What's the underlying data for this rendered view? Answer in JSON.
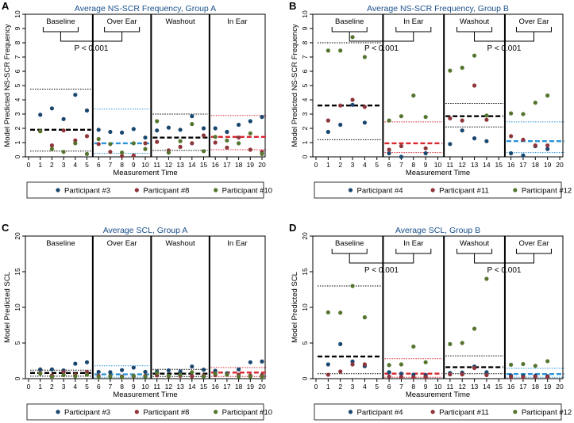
{
  "chart_data": [
    {
      "type": "scatter",
      "panel_letter": "A",
      "title": "Average NS-SCR Frequency, Group A",
      "xlabel": "Measurement Time",
      "ylabel": "Model Predicted NS-SCR Frequency",
      "xlim": [
        0,
        20
      ],
      "ylim": [
        0,
        10
      ],
      "yticks": [
        0,
        1,
        2,
        3,
        4,
        5,
        6,
        7,
        8,
        9,
        10
      ],
      "xticks": [
        0,
        1,
        2,
        3,
        4,
        5,
        6,
        7,
        8,
        9,
        10,
        11,
        12,
        13,
        14,
        15,
        16,
        17,
        18,
        19,
        20
      ],
      "phases": [
        {
          "label": "Baseline",
          "x_start": 0,
          "x_end": 5.5,
          "mean": 1.9,
          "upper": 4.75,
          "lower": 0.4,
          "mean_color": "#000000",
          "band_color": "#000000"
        },
        {
          "label": "Over Ear",
          "x_start": 5.5,
          "x_end": 10.5,
          "mean": 0.95,
          "upper": 3.35,
          "lower": 0.25,
          "mean_color": "#2a92d8",
          "band_color": "#2a92d8"
        },
        {
          "label": "Washout",
          "x_start": 10.5,
          "x_end": 15.5,
          "mean": 1.35,
          "upper": 3.0,
          "lower": 0.45,
          "mean_color": "#000000",
          "band_color": "#000000"
        },
        {
          "label": "In Ear",
          "x_start": 15.5,
          "x_end": 20.5,
          "mean": 1.4,
          "upper": 2.9,
          "lower": 0.5,
          "mean_color": "#d8262f",
          "band_color": "#d8262f"
        }
      ],
      "phase_boundaries": [
        5.5,
        10.5,
        15.5
      ],
      "comparison": {
        "from_phase": 0,
        "to_phase": 1,
        "text": "P < 0.001"
      },
      "series": [
        {
          "name": "Participant #3",
          "color": "#1a476f",
          "x": [
            1,
            2,
            3,
            4,
            5,
            6,
            7,
            8,
            9,
            10,
            11,
            12,
            13,
            14,
            15,
            16,
            17,
            18,
            19,
            20
          ],
          "y": [
            2.95,
            3.4,
            2.65,
            4.35,
            3.25,
            1.9,
            1.75,
            1.7,
            1.95,
            1.35,
            1.85,
            2.05,
            1.9,
            2.85,
            2.0,
            2.0,
            1.75,
            2.25,
            2.5,
            2.8
          ]
        },
        {
          "name": "Participant #8",
          "color": "#90353b",
          "x": [
            1,
            2,
            3,
            4,
            5,
            6,
            7,
            8,
            9,
            10,
            11,
            12,
            13,
            14,
            15,
            16,
            17,
            18,
            19,
            20
          ],
          "y": [
            1.8,
            0.8,
            1.85,
            1.15,
            1.45,
            0.9,
            0.35,
            0.05,
            0.1,
            0.95,
            1.05,
            0.45,
            0.7,
            0.95,
            1.5,
            1.0,
            0.65,
            1.35,
            0.5,
            0.35
          ]
        },
        {
          "name": "Participant #10",
          "color": "#55752f",
          "x": [
            1,
            2,
            3,
            4,
            5,
            6,
            7,
            8,
            9,
            10,
            11,
            12,
            13,
            14,
            15,
            16,
            17,
            18,
            19,
            20
          ],
          "y": [
            1.8,
            0.55,
            0.35,
            0.95,
            0.2,
            1.25,
            0.9,
            0.3,
            0.95,
            0.55,
            2.5,
            0.3,
            1.1,
            2.3,
            0.4,
            1.4,
            1.15,
            0.95,
            1.65,
            0.2
          ]
        }
      ]
    },
    {
      "type": "scatter",
      "panel_letter": "B",
      "title": "Average NS-SCR Frequency, Group B",
      "xlabel": "Measurement Time",
      "ylabel": "Model Predicted NS-SCR Frequency",
      "xlim": [
        0,
        20
      ],
      "ylim": [
        0,
        10
      ],
      "yticks": [
        0,
        1,
        2,
        3,
        4,
        5,
        6,
        7,
        8,
        9,
        10
      ],
      "xticks": [
        0,
        1,
        2,
        3,
        4,
        5,
        6,
        7,
        8,
        9,
        10,
        11,
        12,
        13,
        14,
        15,
        16,
        17,
        18,
        19,
        20
      ],
      "phases": [
        {
          "label": "Baseline",
          "x_start": 0,
          "x_end": 5.5,
          "mean": 3.6,
          "upper": 8.0,
          "lower": 1.2,
          "mean_color": "#000000",
          "band_color": "#000000"
        },
        {
          "label": "In Ear",
          "x_start": 5.5,
          "x_end": 10.5,
          "mean": 0.95,
          "upper": 2.45,
          "lower": 0.3,
          "mean_color": "#d8262f",
          "band_color": "#d8262f"
        },
        {
          "label": "Washout",
          "x_start": 10.5,
          "x_end": 15.5,
          "mean": 2.85,
          "upper": 3.75,
          "lower": 2.1,
          "mean_color": "#000000",
          "band_color": "#000000"
        },
        {
          "label": "Over Ear",
          "x_start": 15.5,
          "x_end": 20.5,
          "mean": 1.1,
          "upper": 2.45,
          "lower": 0.3,
          "mean_color": "#2a92d8",
          "band_color": "#2a92d8"
        }
      ],
      "phase_boundaries": [
        5.5,
        10.5,
        15.5
      ],
      "comparisons": [
        {
          "from_phase": 0,
          "to_phase": 1,
          "text": "P < 0.001"
        },
        {
          "from_phase": 2,
          "to_phase": 3,
          "text": "P < 0.001"
        }
      ],
      "series": [
        {
          "name": "Participant #4",
          "color": "#1a476f",
          "x": [
            1,
            2,
            3,
            4,
            6,
            7,
            9,
            11,
            12,
            13,
            14,
            16,
            17,
            18,
            19
          ],
          "y": [
            1.75,
            2.25,
            3.65,
            2.4,
            0.25,
            0.0,
            0.25,
            0.9,
            1.85,
            1.3,
            1.1,
            0.25,
            0.1,
            0.75,
            0.55
          ]
        },
        {
          "name": "Participant #11",
          "color": "#90353b",
          "x": [
            1,
            2,
            3,
            4,
            6,
            7,
            9,
            11,
            12,
            13,
            14,
            16,
            17,
            18,
            19
          ],
          "y": [
            2.55,
            3.6,
            4.0,
            3.5,
            0.5,
            0.75,
            0.6,
            2.7,
            2.55,
            5.0,
            2.6,
            1.45,
            1.2,
            0.8,
            0.8
          ]
        },
        {
          "name": "Participant #12",
          "color": "#55752f",
          "x": [
            1,
            2,
            3,
            4,
            6,
            7,
            8,
            9,
            11,
            12,
            13,
            14,
            16,
            17,
            18,
            19
          ],
          "y": [
            7.45,
            7.45,
            8.4,
            7.0,
            2.55,
            2.85,
            4.3,
            2.8,
            6.05,
            6.25,
            7.1,
            2.9,
            3.05,
            3.0,
            3.8,
            4.3
          ]
        }
      ]
    },
    {
      "type": "scatter",
      "panel_letter": "C",
      "title": "Average SCL, Group A",
      "xlabel": "Measurement Time",
      "ylabel": "Model Predicted SCL",
      "xlim": [
        0,
        20
      ],
      "ylim": [
        0,
        20
      ],
      "yticks": [
        0,
        5,
        10,
        15,
        20
      ],
      "xticks": [
        0,
        1,
        2,
        3,
        4,
        5,
        6,
        7,
        8,
        9,
        10,
        11,
        12,
        13,
        14,
        15,
        16,
        17,
        18,
        19,
        20
      ],
      "phases": [
        {
          "label": "Baseline",
          "x_start": 0,
          "x_end": 5.5,
          "mean": 0.8,
          "upper": 1.2,
          "lower": 0.35,
          "mean_color": "#000000",
          "band_color": "#000000"
        },
        {
          "label": "Over Ear",
          "x_start": 5.5,
          "x_end": 10.5,
          "mean": 0.6,
          "upper": 1.8,
          "lower": 0.2,
          "mean_color": "#2a92d8",
          "band_color": "#2a92d8"
        },
        {
          "label": "Washout",
          "x_start": 10.5,
          "x_end": 15.5,
          "mean": 0.7,
          "upper": 1.3,
          "lower": 0.3,
          "mean_color": "#000000",
          "band_color": "#000000"
        },
        {
          "label": "In Ear",
          "x_start": 15.5,
          "x_end": 20.5,
          "mean": 0.85,
          "upper": 1.55,
          "lower": 0.3,
          "mean_color": "#d8262f",
          "band_color": "#d8262f"
        }
      ],
      "phase_boundaries": [
        5.5,
        10.5,
        15.5
      ],
      "series": [
        {
          "name": "Participant #3",
          "color": "#1a476f",
          "x": [
            1,
            2,
            3,
            4,
            5,
            6,
            7,
            8,
            9,
            10,
            11,
            12,
            13,
            14,
            15,
            16,
            17,
            18,
            19,
            20
          ],
          "y": [
            1.3,
            1.3,
            1.15,
            2.1,
            2.3,
            0.95,
            0.9,
            1.2,
            1.55,
            0.95,
            1.0,
            1.15,
            1.0,
            1.7,
            1.25,
            1.1,
            0.75,
            1.3,
            2.3,
            2.4
          ]
        },
        {
          "name": "Participant #8",
          "color": "#90353b",
          "x": [
            1,
            2,
            3,
            4,
            5,
            6,
            7,
            8,
            9,
            10,
            11,
            12,
            13,
            14,
            15,
            16,
            17,
            18,
            19,
            20
          ],
          "y": [
            0.8,
            0.45,
            0.9,
            0.55,
            0.9,
            0.4,
            0.35,
            0.3,
            0.35,
            0.4,
            0.45,
            0.35,
            0.4,
            0.35,
            0.45,
            0.5,
            0.6,
            0.55,
            0.45,
            0.5
          ]
        },
        {
          "name": "Participant #10",
          "color": "#55752f",
          "x": [
            1,
            2,
            3,
            4,
            5,
            6,
            7,
            8,
            9,
            10,
            11,
            12,
            13,
            14,
            15,
            16,
            17,
            18,
            19,
            20
          ],
          "y": [
            0.7,
            0.25,
            0.5,
            0.35,
            0.55,
            0.25,
            0.3,
            0.2,
            0.4,
            0.3,
            0.8,
            0.4,
            0.55,
            0.9,
            0.3,
            0.7,
            0.55,
            0.3,
            0.3,
            0.25
          ]
        }
      ]
    },
    {
      "type": "scatter",
      "panel_letter": "D",
      "title": "Average SCL, Group B",
      "xlabel": "Measurement Time",
      "ylabel": "Model Predicted SCL",
      "xlim": [
        0,
        20
      ],
      "ylim": [
        0,
        20
      ],
      "yticks": [
        0,
        5,
        10,
        15,
        20
      ],
      "xticks": [
        0,
        1,
        2,
        3,
        4,
        5,
        6,
        7,
        8,
        9,
        10,
        11,
        12,
        13,
        14,
        15,
        16,
        17,
        18,
        19,
        20
      ],
      "phases": [
        {
          "label": "Baseline",
          "x_start": 0,
          "x_end": 5.5,
          "mean": 3.1,
          "upper": 13.0,
          "lower": 0.7,
          "mean_color": "#000000",
          "band_color": "#000000"
        },
        {
          "label": "In Ear",
          "x_start": 5.5,
          "x_end": 10.5,
          "mean": 0.7,
          "upper": 2.8,
          "lower": 0.2,
          "mean_color": "#d8262f",
          "band_color": "#d8262f"
        },
        {
          "label": "Washout",
          "x_start": 10.5,
          "x_end": 15.5,
          "mean": 1.6,
          "upper": 3.2,
          "lower": 0.7,
          "mean_color": "#000000",
          "band_color": "#000000"
        },
        {
          "label": "Over Ear",
          "x_start": 15.5,
          "x_end": 20.5,
          "mean": 0.65,
          "upper": 1.45,
          "lower": 0.2,
          "mean_color": "#2a92d8",
          "band_color": "#2a92d8"
        }
      ],
      "phase_boundaries": [
        5.5,
        10.5,
        15.5
      ],
      "comparisons": [
        {
          "from_phase": 0,
          "to_phase": 1,
          "text": "P < 0.001"
        },
        {
          "from_phase": 2,
          "to_phase": 3,
          "text": "P < 0.001"
        }
      ],
      "series": [
        {
          "name": "Participant #4",
          "color": "#1a476f",
          "x": [
            1,
            2,
            3,
            4,
            6,
            7,
            8,
            9,
            11,
            12,
            13,
            14,
            16,
            17,
            18,
            19
          ],
          "y": [
            2.0,
            4.85,
            2.4,
            1.75,
            0.9,
            0.7,
            0.55,
            0.5,
            0.8,
            0.85,
            1.7,
            0.9,
            0.45,
            0.4,
            0.4,
            0.35
          ]
        },
        {
          "name": "Participant #11",
          "color": "#90353b",
          "x": [
            1,
            2,
            3,
            4,
            6,
            7,
            8,
            9,
            11,
            12,
            13,
            14,
            16,
            17,
            18,
            19
          ],
          "y": [
            0.55,
            1.0,
            2.0,
            2.0,
            0.3,
            0.25,
            0.2,
            0.25,
            0.6,
            0.6,
            1.5,
            0.5,
            0.25,
            0.2,
            0.3,
            0.25
          ]
        },
        {
          "name": "Participant #12",
          "color": "#55752f",
          "x": [
            1,
            2,
            3,
            4,
            6,
            7,
            8,
            9,
            11,
            12,
            13,
            14,
            16,
            17,
            18,
            19
          ],
          "y": [
            9.3,
            9.25,
            13.0,
            8.6,
            1.9,
            2.0,
            4.5,
            2.3,
            4.85,
            5.0,
            7.0,
            14.0,
            1.95,
            2.05,
            1.8,
            2.45
          ]
        }
      ]
    }
  ]
}
